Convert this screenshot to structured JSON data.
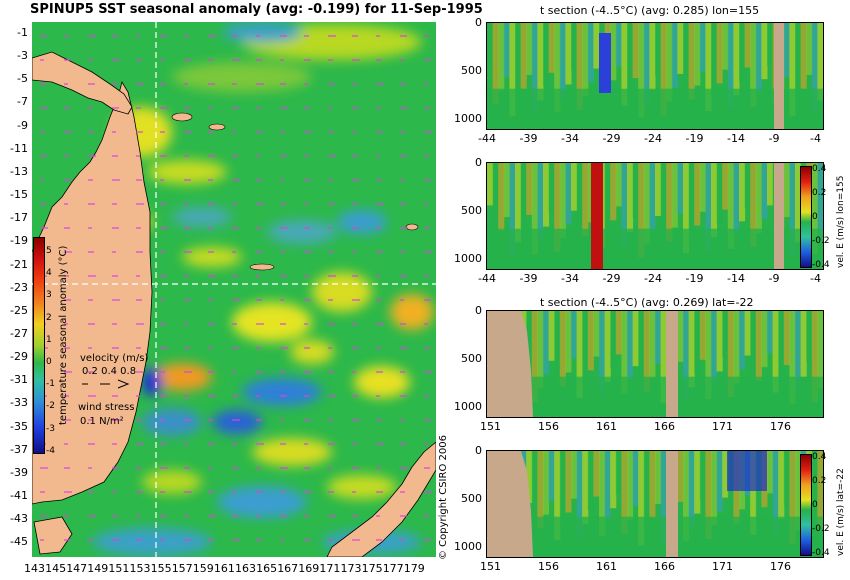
{
  "map": {
    "title": "SPINUP5 SST seasonal anomaly (avg: -0.199) for 11-Sep-1995",
    "lat_labels": [
      "-1",
      "-3",
      "-5",
      "-7",
      "-9",
      "-11",
      "-13",
      "-15",
      "-17",
      "-19",
      "-21",
      "-23",
      "-25",
      "-27",
      "-29",
      "-31",
      "-33",
      "-35",
      "-37",
      "-39",
      "-41",
      "-43",
      "-45"
    ],
    "lon_labels": [
      "143",
      "145",
      "147",
      "149",
      "151",
      "153",
      "155",
      "157",
      "159",
      "161",
      "163",
      "165",
      "167",
      "169",
      "171",
      "173",
      "175",
      "177",
      "179"
    ],
    "colorbar": {
      "label": "temperature seasonal anomaly (°C)",
      "ticks": [
        "5",
        "4",
        "3",
        "2",
        "1",
        "0",
        "-1",
        "-2",
        "-3",
        "-4"
      ]
    },
    "velocity_legend": {
      "title": "velocity (m/s)",
      "values": "0.2 0.4 0.8"
    },
    "wind_legend": {
      "title": "wind stress",
      "value": "0.1 N/m²"
    },
    "copyright": "© Copyright CSIRO 2006",
    "colors": {
      "land": "#f2b98e",
      "ocean_base": "#27b24a",
      "crosshair": "#ffffff",
      "vectors": "#e040e0"
    }
  },
  "panels": [
    {
      "title": "t section (-4..5°C) (avg: 0.285) lon=155",
      "y_ticks": [
        "0",
        "500",
        "1000"
      ],
      "x_ticks": [
        "-44",
        "-39",
        "-34",
        "-29",
        "-24",
        "-19",
        "-14",
        "-9",
        "-4"
      ],
      "colorbar": null
    },
    {
      "title": "",
      "y_ticks": [
        "0",
        "500",
        "1000"
      ],
      "x_ticks": [
        "-44",
        "-39",
        "-34",
        "-29",
        "-24",
        "-19",
        "-14",
        "-9",
        "-4"
      ],
      "colorbar": {
        "label": "vel. E (m/s) lon=155",
        "ticks": [
          "0.4",
          "0.2",
          "0",
          "-0.2",
          "-0.4"
        ]
      }
    },
    {
      "title": "t section (-4..5°C) (avg: 0.269) lat=-22",
      "y_ticks": [
        "0",
        "500",
        "1000"
      ],
      "x_ticks": [
        "151",
        "156",
        "161",
        "166",
        "171",
        "176"
      ],
      "colorbar": null
    },
    {
      "title": "",
      "y_ticks": [
        "0",
        "500",
        "1000"
      ],
      "x_ticks": [
        "151",
        "156",
        "161",
        "166",
        "171",
        "176"
      ],
      "colorbar": {
        "label": "vel. E (m/s) lat=-22",
        "ticks": [
          "0.4",
          "0.2",
          "0",
          "-0.2",
          "-0.4"
        ]
      }
    }
  ]
}
